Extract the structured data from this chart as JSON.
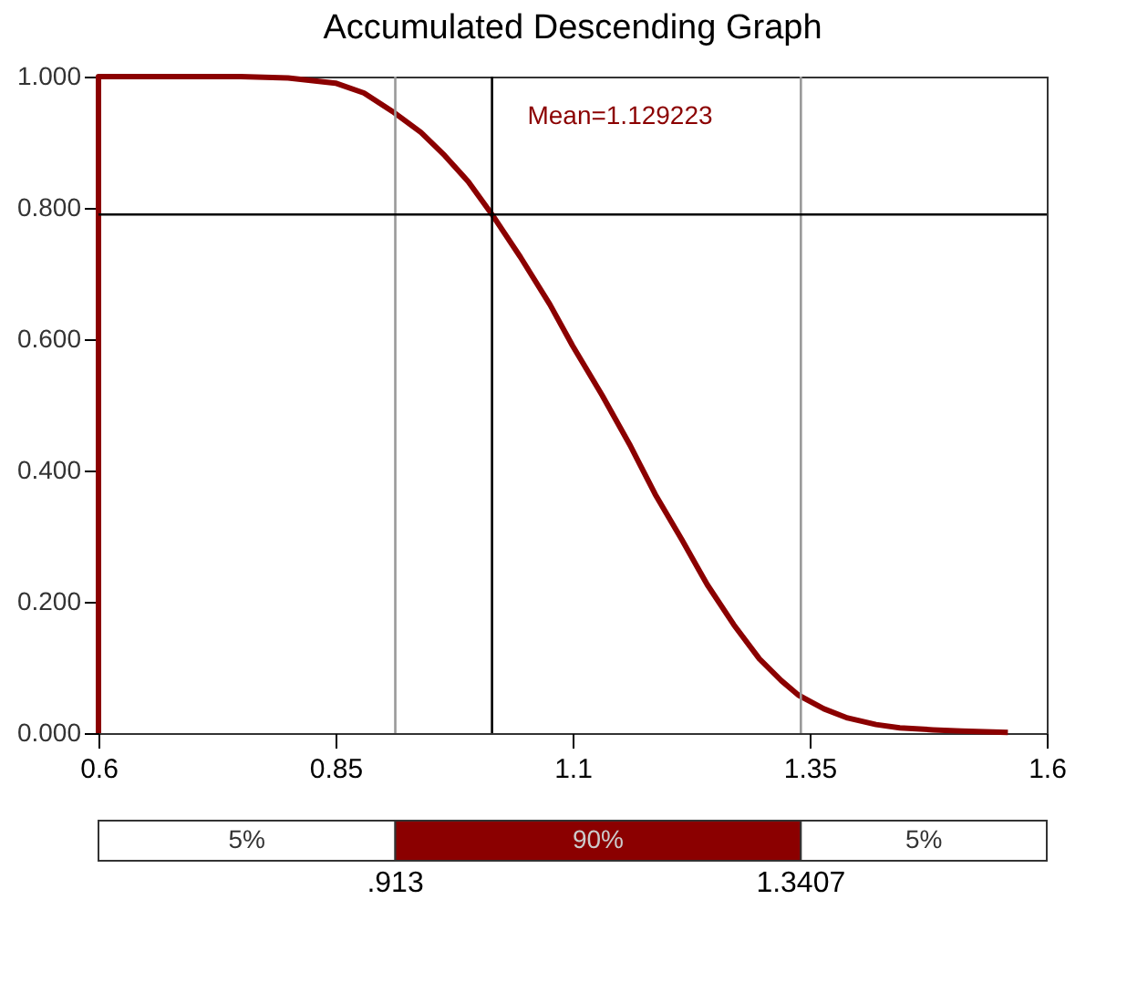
{
  "chart_data": {
    "type": "line",
    "title": "Accumulated Descending Graph",
    "x": [
      0.6,
      0.6,
      0.75,
      0.8,
      0.85,
      0.88,
      0.91,
      0.94,
      0.965,
      0.99,
      1.015,
      1.045,
      1.076,
      1.1,
      1.131,
      1.16,
      1.187,
      1.215,
      1.242,
      1.27,
      1.297,
      1.32,
      1.338,
      1.365,
      1.39,
      1.42,
      1.445,
      1.48,
      1.51,
      1.559
    ],
    "series": [
      {
        "color": "#8b0000",
        "values": [
          0,
          1,
          1,
          0.998,
          0.99,
          0.975,
          0.947,
          0.915,
          0.88,
          0.84,
          0.79,
          0.725,
          0.653,
          0.59,
          0.515,
          0.44,
          0.364,
          0.295,
          0.226,
          0.165,
          0.113,
          0.08,
          0.058,
          0.037,
          0.023,
          0.013,
          0.008,
          0.005,
          0.003,
          0.001
        ]
      }
    ],
    "xlim": [
      0.6,
      1.6
    ],
    "ylim": [
      0,
      1
    ],
    "xticks": [
      0.6,
      0.85,
      1.1,
      1.35,
      1.6
    ],
    "yticks": [
      {
        "value": 0,
        "label": "0.000"
      },
      {
        "value": 0.2,
        "label": "0.200"
      },
      {
        "value": 0.4,
        "label": "0.400"
      },
      {
        "value": 0.6,
        "label": "0.600"
      },
      {
        "value": 0.8,
        "label": "0.800"
      },
      {
        "value": 1,
        "label": "1.000"
      }
    ],
    "ref_lines": [
      {
        "axis": "x",
        "value": 0.913,
        "color": "#999999"
      },
      {
        "axis": "x",
        "value": 1.3407,
        "color": "#999999"
      },
      {
        "axis": "x",
        "value": 1.015,
        "color": "#000000"
      },
      {
        "axis": "y",
        "value": 0.79,
        "color": "#000000"
      }
    ],
    "annotations": [
      "Mean=1.129223",
      "5%",
      "90%",
      "5%",
      ".913",
      "1.3407"
    ],
    "line_style": "solid",
    "marker": "none",
    "grid": false
  }
}
